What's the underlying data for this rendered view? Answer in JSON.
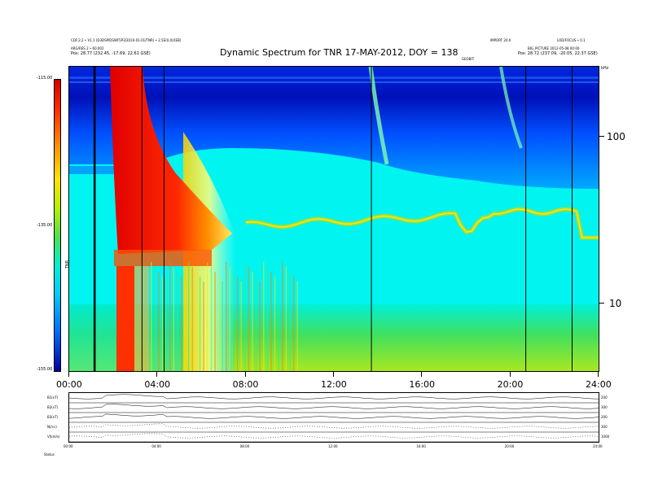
{
  "header": {
    "title": "Dynamic Spectrum for TNR 17-MAY-2012, DOY = 138",
    "left_line1": "CDF:2.2 • V1.1 (D3DSPIDSWF5P3/2010-01-01/TNR) • 2.5E(0,0)/[EB]",
    "left_line2": "ARG/RES 2 • 60.002",
    "left_line3": "Pos: 28.77 (232.45, -17.69, 22.61 GSE)",
    "right_line1": "IMPORT 20.0",
    "right_line2": "LOD/FOCUS • 0.1",
    "right_line3": "BIG_PICTURE 2012-05-08 00:00",
    "right_line4": "Pos: 28.72 (237.09, -20.05, 22.37 GSE)",
    "center_small": "GEOBIT"
  },
  "colorbar": {
    "top_label": "-115.00",
    "mid_label": "-135.00",
    "bottom_label": "-155.00",
    "unit_label": "TNR"
  },
  "yaxis_right": {
    "unit_label": "kHz",
    "ticks": [
      "100",
      "10"
    ]
  },
  "colors": {
    "background": "#00ffff",
    "low": "#0000a0",
    "high": "#d40000",
    "trace": "#a8e020"
  },
  "chart_data": {
    "type": "heatmap",
    "title": "Dynamic Spectrum for TNR 17-MAY-2012, DOY = 138",
    "x_ticks": [
      "00:00",
      "04:00",
      "08:00",
      "12:00",
      "16:00",
      "20:00",
      "24:00"
    ],
    "y_ticks": [
      "100",
      "10"
    ],
    "y_scale": "log",
    "color_scale": {
      "min": -155.0,
      "mid": -135.0,
      "max": -115.0
    },
    "xlim_hours": [
      0,
      24
    ],
    "vertical_markers_hours": [
      1.15,
      3.3,
      4.3,
      13.7,
      20.7,
      22.8
    ]
  },
  "bottom_panel": {
    "row_labels": [
      "B1(nT)",
      "B2(nT)",
      "B3(nT)",
      "N(/cc)",
      "V(km/s)"
    ],
    "right_labels": [
      "200",
      "300",
      "200",
      "300",
      "1000"
    ],
    "x_ticks": [
      "00:00",
      "04:00",
      "08:00",
      "12:00",
      "16:00",
      "20:00",
      "24:00"
    ],
    "footer_label": "Status"
  }
}
